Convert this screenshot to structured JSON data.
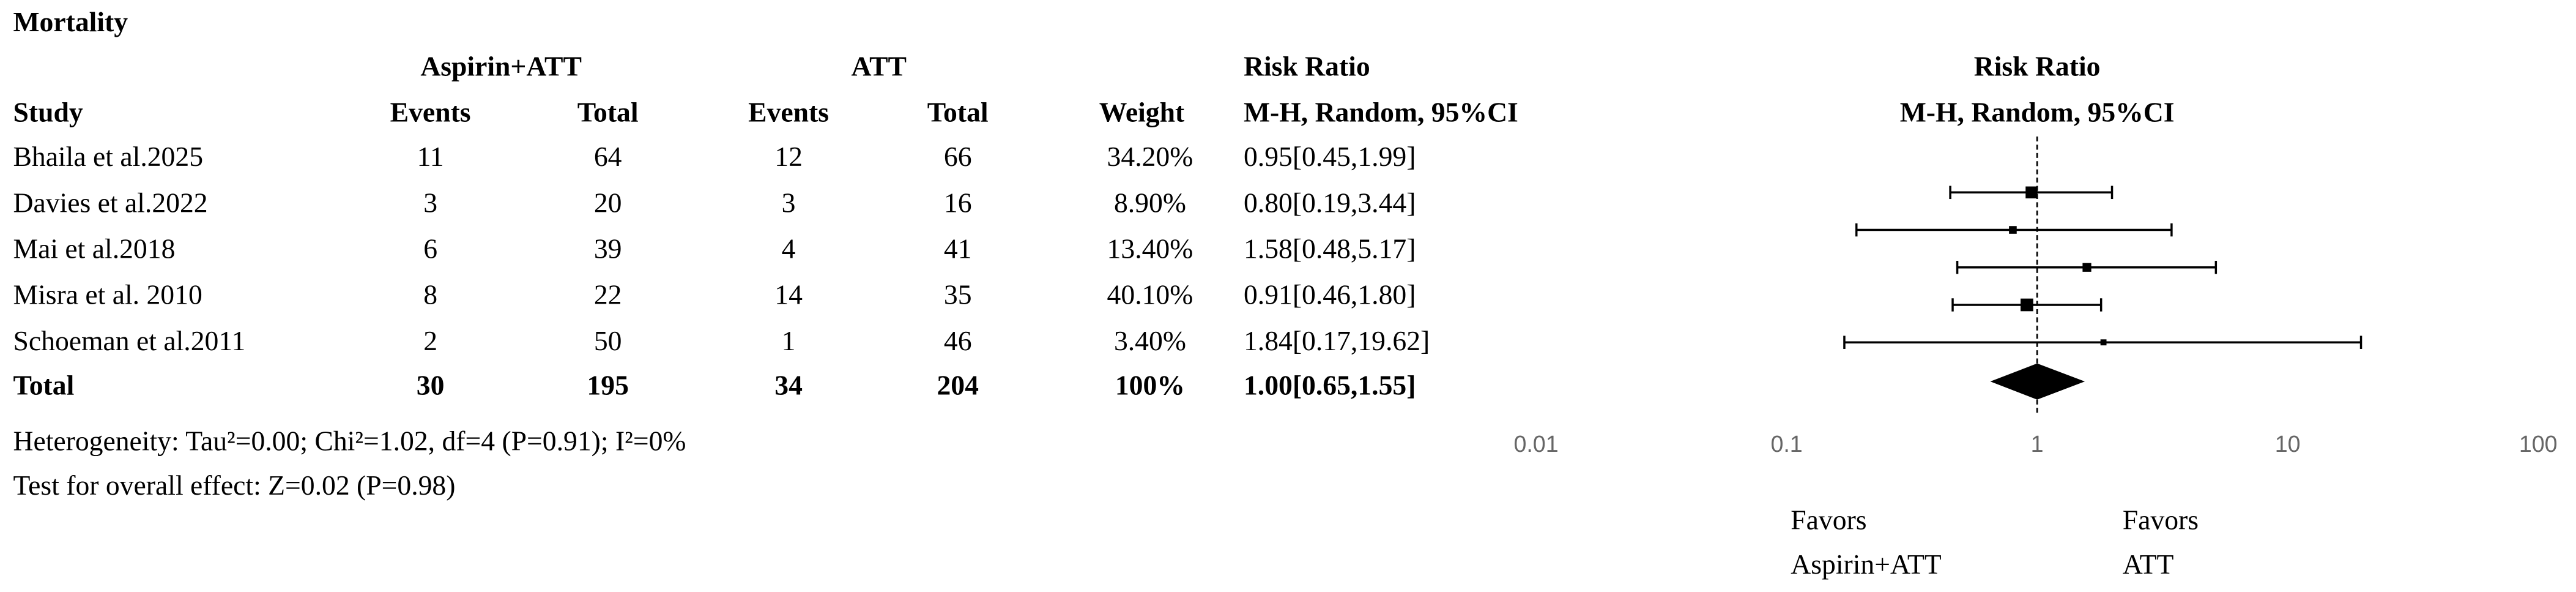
{
  "chart_data": {
    "type": "forest",
    "title": "Mortality",
    "group_headers": [
      "Aspirin+ATT",
      "ATT",
      "Risk Ratio",
      "Risk Ratio"
    ],
    "columns": [
      "Study",
      "Events",
      "Total",
      "Events",
      "Total",
      "Weight",
      "M-H, Random, 95%CI",
      "M-H, Random, 95%CI"
    ],
    "studies": [
      {
        "name": "Bhaila et al.2025",
        "events1": 11,
        "total1": 64,
        "events2": 12,
        "total2": 66,
        "weight": 34.2,
        "weight_label": "34.20%",
        "rr": 0.95,
        "lo": 0.45,
        "hi": 1.99,
        "rr_label": "0.95[0.45,1.99]"
      },
      {
        "name": "Davies et al.2022",
        "events1": 3,
        "total1": 20,
        "events2": 3,
        "total2": 16,
        "weight": 8.9,
        "weight_label": "8.90%",
        "rr": 0.8,
        "lo": 0.19,
        "hi": 3.44,
        "rr_label": "0.80[0.19,3.44]"
      },
      {
        "name": "Mai et al.2018",
        "events1": 6,
        "total1": 39,
        "events2": 4,
        "total2": 41,
        "weight": 13.4,
        "weight_label": "13.40%",
        "rr": 1.58,
        "lo": 0.48,
        "hi": 5.17,
        "rr_label": "1.58[0.48,5.17]"
      },
      {
        "name": "Misra et al. 2010",
        "events1": 8,
        "total1": 22,
        "events2": 14,
        "total2": 35,
        "weight": 40.1,
        "weight_label": "40.10%",
        "rr": 0.91,
        "lo": 0.46,
        "hi": 1.8,
        "rr_label": "0.91[0.46,1.80]"
      },
      {
        "name": "Schoeman et al.2011",
        "events1": 2,
        "total1": 50,
        "events2": 1,
        "total2": 46,
        "weight": 3.4,
        "weight_label": "3.40%",
        "rr": 1.84,
        "lo": 0.17,
        "hi": 19.62,
        "rr_label": "1.84[0.17,19.62]"
      }
    ],
    "total": {
      "name": "Total",
      "events1": 30,
      "total1": 195,
      "events2": 34,
      "total2": 204,
      "weight": 100,
      "weight_label": "100%",
      "rr": 1.0,
      "lo": 0.65,
      "hi": 1.55,
      "rr_label": "1.00[0.65,1.55]"
    },
    "heterogeneity": "Heterogeneity: Tau²=0.00; Chi²=1.02, df=4 (P=0.91); I²=0%",
    "overall_effect": "Test for overall effect: Z=0.02 (P=0.98)",
    "xscale": "log",
    "xlim": [
      0.01,
      100
    ],
    "xticks": [
      0.01,
      0.1,
      1,
      10,
      100
    ],
    "reference": 1,
    "favors_left": [
      "Favors",
      "Aspirin+ATT"
    ],
    "favors_right": [
      "Favors",
      "ATT"
    ],
    "color": "#000000"
  }
}
